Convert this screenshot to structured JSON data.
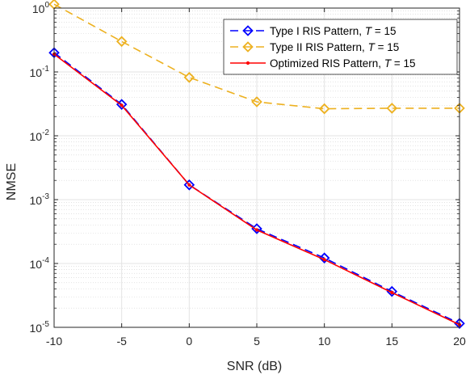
{
  "chart_data": {
    "type": "line",
    "title": "",
    "xlabel": "SNR (dB)",
    "ylabel": "NMSE",
    "x": [
      -10,
      -5,
      0,
      5,
      10,
      15,
      20
    ],
    "xticks": [
      -10,
      -5,
      0,
      5,
      10,
      15,
      20
    ],
    "xlim": [
      -10,
      20
    ],
    "yscale": "log",
    "ylim": [
      1e-05,
      1
    ],
    "yticks": [
      {
        "mantissa": "10",
        "exponent": "0"
      },
      {
        "mantissa": "10",
        "exponent": "-1"
      },
      {
        "mantissa": "10",
        "exponent": "-2"
      },
      {
        "mantissa": "10",
        "exponent": "-3"
      },
      {
        "mantissa": "10",
        "exponent": "-4"
      },
      {
        "mantissa": "10",
        "exponent": "-5"
      }
    ],
    "grid": true,
    "minor_grid": true,
    "legend_position": "top-right",
    "series": [
      {
        "name_prefix": "Type I RIS Pattern, ",
        "name_var": "T",
        "name_suffix": " = 15",
        "color": "#0000ff",
        "line_style": "dashed",
        "marker": "diamond",
        "values": [
          0.2,
          0.031,
          0.0017,
          0.00035,
          0.000122,
          3.65e-05,
          1.15e-05
        ]
      },
      {
        "name_prefix": "Type II RIS Pattern, ",
        "name_var": "T",
        "name_suffix": " = 15",
        "color": "#edb120",
        "line_style": "dashed",
        "marker": "diamond",
        "values": [
          1.15,
          0.3,
          0.082,
          0.034,
          0.0265,
          0.027,
          0.027
        ]
      },
      {
        "name_prefix": "Optimized RIS Pattern, ",
        "name_var": "T",
        "name_suffix": " = 15",
        "color": "#ff0000",
        "line_style": "solid",
        "marker": "point",
        "values": [
          0.19,
          0.03,
          0.0017,
          0.000335,
          0.000115,
          3.5e-05,
          1.1e-05
        ]
      }
    ]
  }
}
